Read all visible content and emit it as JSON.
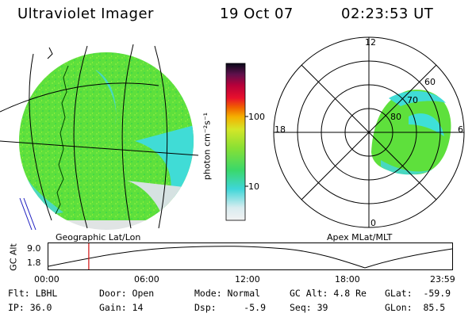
{
  "header": {
    "title": "Ultraviolet Imager",
    "date": "19 Oct 07",
    "time": "02:23:53 UT"
  },
  "geo_panel": {
    "label": "Geographic Lat/Lon"
  },
  "colorbar": {
    "unit_label": "photon cm⁻²s⁻¹",
    "tick_100": "100",
    "tick_10": "10"
  },
  "polar_panel": {
    "label": "Apex MLat/MLT",
    "mlt_top": "12",
    "mlt_left": "18",
    "mlt_right": "6",
    "mlt_bottom": "0",
    "lat_60": "60",
    "lat_70": "70",
    "lat_80": "80"
  },
  "altitude_plot": {
    "ylabel": "GC Alt",
    "ytick_max": "9.0",
    "ytick_min": "1.8",
    "xticks": [
      "00:00",
      "06:00",
      "12:00",
      "18:00",
      "23:59"
    ],
    "current_marker_fraction": 0.1
  },
  "info": {
    "flt": "Flt: LBHL",
    "ip": "IP: 36.0",
    "door": "Door: Open",
    "gain": "Gain: 14",
    "mode": "Mode: Normal",
    "dsp": "Dsp:     -5.9",
    "gcalt": "GC Alt: 4.8 Re",
    "seq": "Seq: 39",
    "glat": "GLat:  -59.9",
    "glon": "GLon:  85.5"
  },
  "colors": {
    "aurora_green": "#5de03a",
    "aurora_cyan": "#3ee0d8",
    "dim_gray": "#dcdcdc"
  }
}
